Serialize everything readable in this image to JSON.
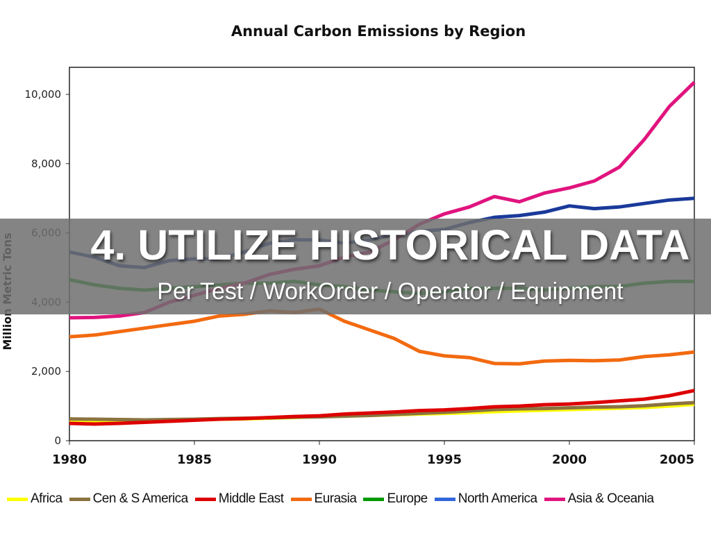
{
  "chart_data": {
    "type": "line",
    "title": "Annual Carbon Emissions by Region",
    "xlabel": "",
    "ylabel": "Million Metric Tons",
    "xlim": [
      1980,
      2005
    ],
    "ylim": [
      0,
      10800
    ],
    "x_ticks": [
      "1980",
      "1985",
      "1990",
      "1995",
      "2000",
      "2005"
    ],
    "y_ticks": [
      "0",
      "2,000",
      "4,000",
      "6,000",
      "8,000",
      "10,000"
    ],
    "grid": false,
    "legend_position": "bottom",
    "x": [
      1980,
      1981,
      1982,
      1983,
      1984,
      1985,
      1986,
      1987,
      1988,
      1989,
      1990,
      1991,
      1992,
      1993,
      1994,
      1995,
      1996,
      1997,
      1998,
      1999,
      2000,
      2001,
      2002,
      2003,
      2004,
      2005
    ],
    "series": [
      {
        "name": "Africa",
        "color": "#ffff00",
        "values": [
          540,
          550,
          560,
          580,
          600,
          610,
          620,
          630,
          650,
          670,
          700,
          710,
          730,
          750,
          770,
          790,
          810,
          840,
          860,
          880,
          900,
          920,
          940,
          960,
          1000,
          1050
        ]
      },
      {
        "name": "Cen & S America",
        "color": "#8b7340",
        "values": [
          630,
          620,
          610,
          600,
          610,
          620,
          640,
          650,
          660,
          680,
          690,
          710,
          730,
          760,
          790,
          820,
          860,
          900,
          920,
          930,
          950,
          970,
          980,
          1010,
          1060,
          1100
        ]
      },
      {
        "name": "Middle East",
        "color": "#dd0000",
        "values": [
          500,
          480,
          500,
          530,
          560,
          590,
          620,
          640,
          670,
          700,
          720,
          770,
          800,
          830,
          870,
          890,
          930,
          980,
          1000,
          1040,
          1060,
          1100,
          1150,
          1200,
          1300,
          1450
        ]
      },
      {
        "name": "Eurasia",
        "color": "#f26a10",
        "values": [
          3000,
          3050,
          3150,
          3250,
          3350,
          3450,
          3600,
          3650,
          3750,
          3700,
          3800,
          3450,
          3200,
          2950,
          2580,
          2450,
          2400,
          2230,
          2220,
          2300,
          2320,
          2310,
          2330,
          2430,
          2480,
          2560
        ]
      },
      {
        "name": "Europe",
        "color": "#009900",
        "values": [
          4650,
          4500,
          4400,
          4350,
          4400,
          4450,
          4500,
          4550,
          4550,
          4600,
          4500,
          4450,
          4350,
          4300,
          4250,
          4300,
          4400,
          4400,
          4400,
          4350,
          4400,
          4450,
          4450,
          4550,
          4600,
          4600
        ]
      },
      {
        "name": "North America",
        "color": "#1a3a9a",
        "legend_color": "#3366dd",
        "values": [
          5450,
          5300,
          5050,
          5000,
          5200,
          5250,
          5250,
          5450,
          5700,
          5800,
          5800,
          5700,
          5800,
          5950,
          6050,
          6100,
          6300,
          6450,
          6500,
          6600,
          6780,
          6700,
          6750,
          6850,
          6950,
          7000
        ]
      },
      {
        "name": "Asia & Oceania",
        "color": "#e0147e",
        "values": [
          3550,
          3560,
          3600,
          3700,
          4000,
          4200,
          4400,
          4550,
          4800,
          4950,
          5050,
          5300,
          5450,
          5800,
          6250,
          6550,
          6750,
          7050,
          6900,
          7150,
          7300,
          7500,
          7900,
          8700,
          9650,
          10350
        ]
      }
    ]
  },
  "banner": {
    "title": "4. UTILIZE HISTORICAL DATA",
    "subtitle": "Per Test / WorkOrder / Operator / Equipment"
  }
}
